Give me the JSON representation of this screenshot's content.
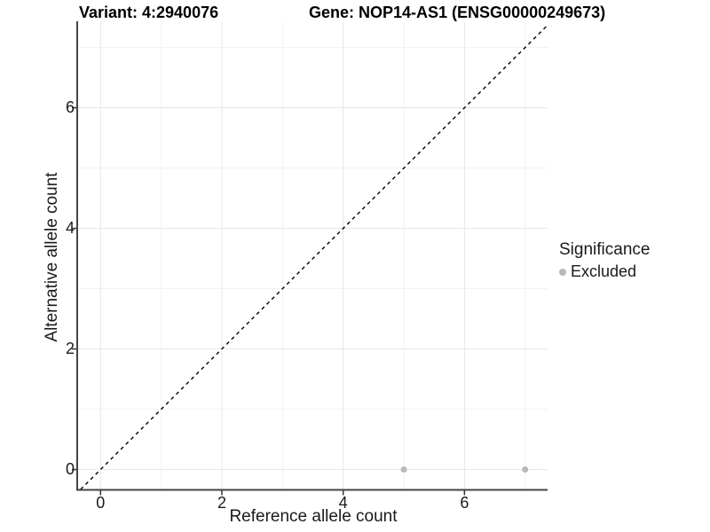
{
  "figure": {
    "title_variant": "Variant: 4:2940076",
    "title_gene": "Gene: NOP14-AS1 (ENSG00000249673)"
  },
  "axes": {
    "x_label": "Reference allele count",
    "y_label": "Alternative allele count"
  },
  "legend": {
    "title": "Significance",
    "entries": [
      {
        "label": "Excluded",
        "color": "#b9b9b9"
      }
    ]
  },
  "chart_data": {
    "type": "scatter",
    "title": "Variant: 4:2940076 | Gene: NOP14-AS1 (ENSG00000249673)",
    "xlabel": "Reference allele count",
    "ylabel": "Alternative allele count",
    "xlim": [
      -0.37,
      7.37
    ],
    "ylim": [
      -0.33,
      7.42
    ],
    "xticks": {
      "values": [
        0,
        2,
        4,
        6
      ],
      "labels": [
        "0",
        "2",
        "4",
        "6"
      ]
    },
    "yticks": {
      "values": [
        0,
        2,
        4,
        6
      ],
      "labels": [
        "0",
        "2",
        "4",
        "6"
      ]
    },
    "minor_gridlines": {
      "x": [
        1,
        3,
        5,
        7
      ],
      "y": [
        1,
        3,
        5,
        7
      ]
    },
    "grid": true,
    "legend_position": "right",
    "series": [
      {
        "name": "Excluded",
        "color": "#b9b9b9",
        "points": [
          [
            5,
            0
          ],
          [
            7,
            0
          ]
        ]
      }
    ],
    "reference_line": {
      "type": "identity",
      "slope": 1,
      "intercept": 0,
      "style": "dashed",
      "color": "#000000"
    }
  },
  "colors": {
    "background": "#ffffff",
    "axis_line": "#444444",
    "tick_mark": "#333333",
    "grid_major": "#e6e6e6",
    "grid_minor": "#f2f2f2",
    "point": "#b9b9b9",
    "dashed_line": "#000000",
    "text": "#1a1a1a"
  }
}
